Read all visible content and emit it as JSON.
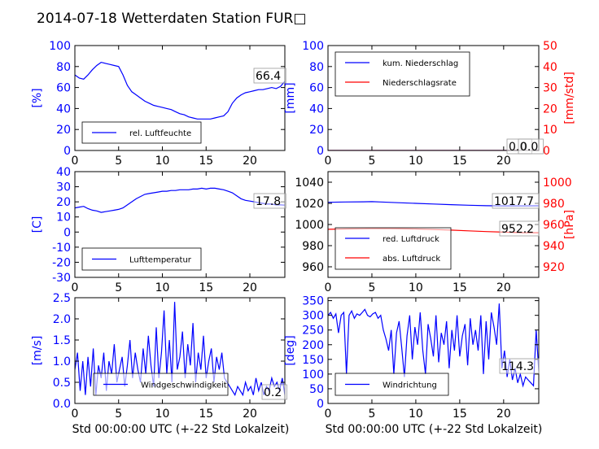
{
  "title": "2014-07-18 Wetterdaten Station FUR□",
  "colors": {
    "primary": "#0000ff",
    "secondary": "#ff0000",
    "light": "#8080ff"
  },
  "xlabel": "Std 00:00:00 UTC (+-22 Std Lokalzeit)",
  "chart_data": [
    {
      "type": "line",
      "ylabel": "[%]",
      "xlim": [
        0,
        24
      ],
      "ylim": [
        0,
        100
      ],
      "xticks": [
        0,
        5,
        10,
        15,
        20
      ],
      "yticks": [
        0,
        20,
        40,
        60,
        80,
        100
      ],
      "legend": "lower-left",
      "annotation": "66.4",
      "series": [
        {
          "name": "rel. Luftfeuchte",
          "color": "#0000ff",
          "axis": "left",
          "x": [
            0,
            0.5,
            1,
            1.5,
            2,
            2.5,
            3,
            3.5,
            4,
            4.5,
            5,
            5.5,
            6,
            6.5,
            7,
            7.5,
            8,
            8.5,
            9,
            9.5,
            10,
            10.5,
            11,
            11.5,
            12,
            12.5,
            13,
            13.5,
            14,
            14.5,
            15,
            15.5,
            16,
            16.5,
            17,
            17.5,
            18,
            18.5,
            19,
            19.5,
            20,
            20.5,
            21,
            21.5,
            22,
            22.5,
            23,
            23.5,
            24
          ],
          "y": [
            72,
            69,
            68,
            72,
            77,
            81,
            84,
            83,
            82,
            81,
            80,
            72,
            62,
            56,
            53,
            50,
            47,
            45,
            43,
            42,
            41,
            40,
            39,
            37,
            35,
            34,
            32,
            31,
            30,
            30,
            30,
            30,
            31,
            32,
            33,
            37,
            45,
            50,
            53,
            55,
            56,
            57,
            58,
            58,
            59,
            60,
            59,
            61,
            66
          ]
        }
      ]
    },
    {
      "type": "line",
      "ylabel": "[mm]",
      "y2label": "[mm/std]",
      "xlim": [
        0,
        24
      ],
      "ylim": [
        0,
        100
      ],
      "y2lim": [
        0,
        50
      ],
      "xticks": [
        0,
        5,
        10,
        15,
        20
      ],
      "yticks": [
        0,
        20,
        40,
        60,
        80,
        100
      ],
      "y2ticks": [
        0,
        10,
        20,
        30,
        40,
        50
      ],
      "legend": "top-left",
      "annotation": "0.0",
      "annotation2": "0.0",
      "series": [
        {
          "name": "kum. Niederschlag",
          "color": "#0000ff",
          "axis": "left",
          "x": [
            0,
            24
          ],
          "y": [
            0,
            0
          ]
        },
        {
          "name": "Niederschlagsrate",
          "color": "#ff0000",
          "axis": "right",
          "x": [
            0,
            24
          ],
          "y": [
            0,
            0
          ]
        }
      ]
    },
    {
      "type": "line",
      "ylabel": "[C]",
      "xlim": [
        0,
        24
      ],
      "ylim": [
        -30,
        40
      ],
      "xticks": [
        0,
        5,
        10,
        15,
        20
      ],
      "yticks": [
        -30,
        -20,
        -10,
        0,
        10,
        20,
        30,
        40
      ],
      "legend": "lower-left",
      "annotation": "17.8",
      "series": [
        {
          "name": "Lufttemperatur",
          "color": "#0000ff",
          "axis": "left",
          "x": [
            0,
            0.5,
            1,
            1.5,
            2,
            2.5,
            3,
            3.5,
            4,
            4.5,
            5,
            5.5,
            6,
            6.5,
            7,
            7.5,
            8,
            8.5,
            9,
            9.5,
            10,
            10.5,
            11,
            11.5,
            12,
            12.5,
            13,
            13.5,
            14,
            14.5,
            15,
            15.5,
            16,
            16.5,
            17,
            17.5,
            18,
            18.5,
            19,
            19.5,
            20,
            20.5,
            21,
            21.5,
            22,
            22.5,
            23,
            23.5,
            24
          ],
          "y": [
            16,
            16.5,
            17,
            15.5,
            14.5,
            14,
            13,
            13.5,
            14,
            14.5,
            15,
            16,
            18,
            20,
            22,
            23.5,
            25,
            25.5,
            26,
            26.5,
            27,
            27,
            27.5,
            27.5,
            28,
            28,
            28,
            28.5,
            28.5,
            29,
            28.5,
            29,
            29,
            28.5,
            28,
            27,
            26,
            24,
            22,
            21,
            20.5,
            20,
            19.5,
            19,
            18.5,
            18.5,
            18,
            18,
            17.8
          ]
        }
      ]
    },
    {
      "type": "line",
      "ylabel": "",
      "y2label": "[hPa]",
      "xlim": [
        0,
        24
      ],
      "ylim": [
        950,
        1050
      ],
      "y2lim": [
        910,
        1010
      ],
      "xticks": [
        0,
        5,
        10,
        15,
        20
      ],
      "yticks": [
        960,
        980,
        1000,
        1020,
        1040
      ],
      "y2ticks": [
        920,
        940,
        960,
        980,
        1000
      ],
      "legend": "lower-left",
      "annotation": "1017.7",
      "annotation2": "952.2",
      "series": [
        {
          "name": "red. Luftdruck",
          "color": "#0000ff",
          "axis": "left",
          "x": [
            0,
            2,
            4,
            5,
            6,
            8,
            10,
            12,
            14,
            16,
            18,
            20,
            22,
            24
          ],
          "y": [
            1021,
            1021.3,
            1021.5,
            1021.6,
            1021.3,
            1020.6,
            1020,
            1019.4,
            1018.8,
            1018.2,
            1017.8,
            1017.6,
            1017.6,
            1017.7
          ]
        },
        {
          "name": "abs. Luftdruck",
          "color": "#ff0000",
          "axis": "right",
          "x": [
            0,
            2,
            4,
            6,
            8,
            10,
            12,
            14,
            16,
            18,
            20,
            22,
            24
          ],
          "y": [
            955.5,
            955.8,
            956,
            956.2,
            956.1,
            955.8,
            955.3,
            954.7,
            954,
            953.3,
            952.8,
            952.3,
            952.2
          ]
        }
      ]
    },
    {
      "type": "line",
      "ylabel": "[m/s]",
      "xlim": [
        0,
        24
      ],
      "ylim": [
        0,
        2.5
      ],
      "xticks": [
        0,
        5,
        10,
        15,
        20
      ],
      "yticks": [
        0.0,
        0.5,
        1.0,
        1.5,
        2.0,
        2.5
      ],
      "legend": "lower-center",
      "annotation": "0.2",
      "series": [
        {
          "name": "Windgeschwindigkeit",
          "color": "#0000ff",
          "axis": "left",
          "x": [
            0,
            0.3,
            0.6,
            0.9,
            1.2,
            1.5,
            1.8,
            2.1,
            2.4,
            2.7,
            3.0,
            3.3,
            3.6,
            3.9,
            4.2,
            4.5,
            4.8,
            5.1,
            5.4,
            5.7,
            6.0,
            6.3,
            6.6,
            6.9,
            7.2,
            7.5,
            7.8,
            8.1,
            8.4,
            8.7,
            9.0,
            9.3,
            9.6,
            9.9,
            10.2,
            10.5,
            10.8,
            11.1,
            11.4,
            11.7,
            12.0,
            12.3,
            12.6,
            12.9,
            13.2,
            13.5,
            13.8,
            14.1,
            14.4,
            14.7,
            15.0,
            15.3,
            15.6,
            15.9,
            16.2,
            16.5,
            16.8,
            17.1,
            17.4,
            17.7,
            18.0,
            18.3,
            18.6,
            18.9,
            19.2,
            19.5,
            19.8,
            20.1,
            20.4,
            20.7,
            21.0,
            21.3,
            21.6,
            21.9,
            22.2,
            22.5,
            22.8,
            23.1,
            23.4,
            23.7,
            24.0
          ],
          "y": [
            0.8,
            1.2,
            0.3,
            1.0,
            0.2,
            1.1,
            0.4,
            1.3,
            0.2,
            0.9,
            0.6,
            1.2,
            0.3,
            1.0,
            0.7,
            1.4,
            0.5,
            0.8,
            1.1,
            0.4,
            0.9,
            1.5,
            0.6,
            1.2,
            0.8,
            0.5,
            1.3,
            0.7,
            1.6,
            0.9,
            0.4,
            1.8,
            0.6,
            1.2,
            2.2,
            0.7,
            1.5,
            0.5,
            2.4,
            0.8,
            1.1,
            1.7,
            0.6,
            1.4,
            0.9,
            1.9,
            0.5,
            1.2,
            0.8,
            1.6,
            0.6,
            1.0,
            1.3,
            0.5,
            1.1,
            0.8,
            1.2,
            0.6,
            0.5,
            0.4,
            0.3,
            0.2,
            0.4,
            0.3,
            0.2,
            0.5,
            0.3,
            0.4,
            0.2,
            0.6,
            0.3,
            0.5,
            0.2,
            0.4,
            0.3,
            0.6,
            0.4,
            0.5,
            0.3,
            0.6,
            0.2
          ]
        }
      ]
    },
    {
      "type": "line",
      "ylabel": "[deg]",
      "xlim": [
        0,
        24
      ],
      "ylim": [
        0,
        360
      ],
      "xticks": [
        0,
        5,
        10,
        15,
        20
      ],
      "yticks": [
        0,
        50,
        100,
        150,
        200,
        250,
        300,
        350
      ],
      "legend": "lower-left",
      "annotation": "114.3",
      "series": [
        {
          "name": "Windrichtung",
          "color": "#0000ff",
          "axis": "left",
          "x": [
            0,
            0.3,
            0.6,
            0.9,
            1.2,
            1.5,
            1.8,
            2.1,
            2.4,
            2.7,
            3.0,
            3.3,
            3.6,
            3.9,
            4.2,
            4.5,
            4.8,
            5.1,
            5.4,
            5.7,
            6.0,
            6.3,
            6.6,
            6.9,
            7.2,
            7.5,
            7.8,
            8.1,
            8.4,
            8.7,
            9.0,
            9.3,
            9.6,
            9.9,
            10.2,
            10.5,
            10.8,
            11.1,
            11.4,
            11.7,
            12.0,
            12.3,
            12.6,
            12.9,
            13.2,
            13.5,
            13.8,
            14.1,
            14.4,
            14.7,
            15.0,
            15.3,
            15.6,
            15.9,
            16.2,
            16.5,
            16.8,
            17.1,
            17.4,
            17.7,
            18.0,
            18.3,
            18.6,
            18.9,
            19.2,
            19.5,
            19.8,
            20.1,
            20.4,
            20.7,
            21.0,
            21.3,
            21.6,
            21.9,
            22.2,
            22.5,
            22.8,
            23.1,
            23.4,
            23.7,
            24.0
          ],
          "y": [
            300,
            310,
            290,
            305,
            240,
            300,
            310,
            100,
            300,
            315,
            290,
            305,
            300,
            310,
            320,
            300,
            295,
            305,
            310,
            290,
            300,
            250,
            220,
            180,
            250,
            100,
            240,
            280,
            190,
            90,
            230,
            300,
            150,
            260,
            200,
            310,
            180,
            100,
            270,
            220,
            160,
            300,
            140,
            240,
            200,
            280,
            120,
            250,
            180,
            300,
            160,
            230,
            270,
            130,
            290,
            200,
            250,
            180,
            300,
            100,
            280,
            150,
            310,
            260,
            200,
            340,
            120,
            180,
            90,
            150,
            80,
            120,
            70,
            100,
            60,
            90,
            80,
            70,
            60,
            250,
            110
          ]
        }
      ]
    }
  ]
}
